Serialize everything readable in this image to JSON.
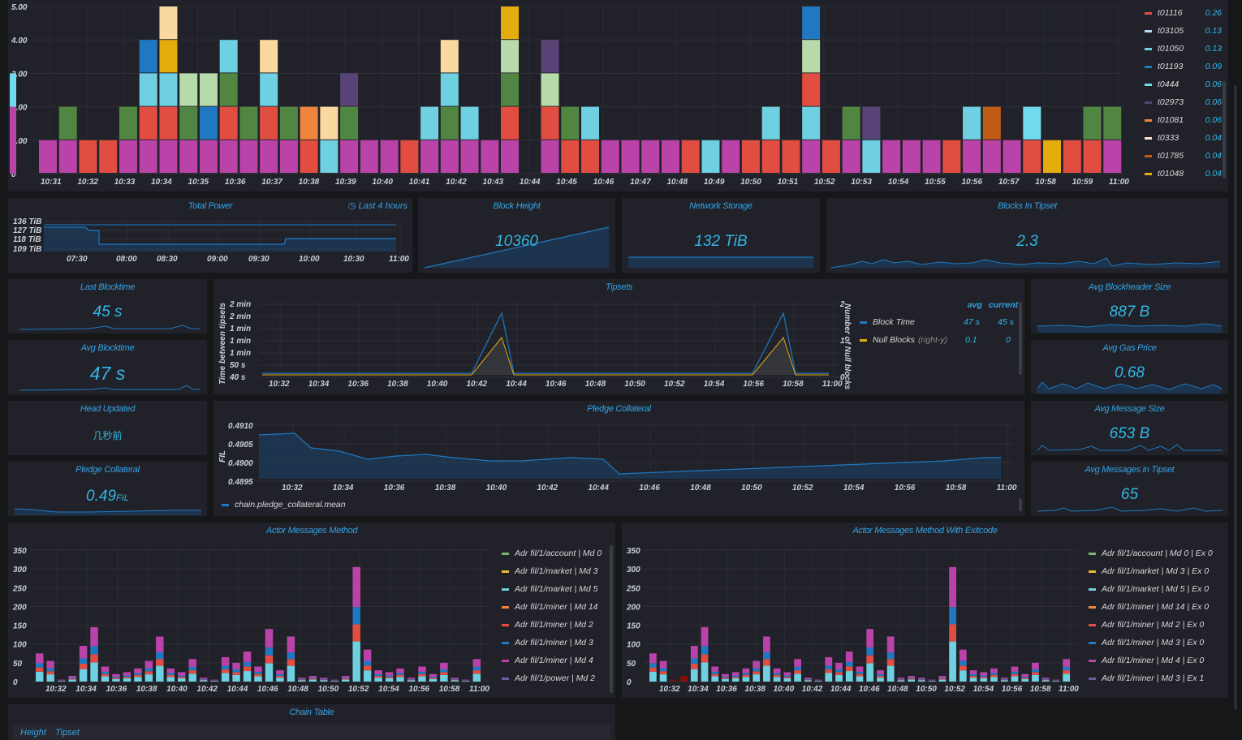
{
  "top_chart": {
    "y_ticks": [
      "5.00",
      "4.00",
      "3.00",
      "2.00",
      "1.00",
      "0"
    ],
    "x_ticks": [
      "10:31",
      "10:32",
      "10:33",
      "10:34",
      "10:35",
      "10:36",
      "10:37",
      "10:38",
      "10:39",
      "10:40",
      "10:41",
      "10:42",
      "10:43",
      "10:44",
      "10:45",
      "10:46",
      "10:47",
      "10:48",
      "10:49",
      "10:50",
      "10:51",
      "10:52",
      "10:53",
      "10:54",
      "10:55",
      "10:56",
      "10:57",
      "10:58",
      "10:59",
      "11:00"
    ],
    "legend": [
      {
        "name": "t01116",
        "value": "0.26",
        "color": "#e24d42"
      },
      {
        "name": "t03105",
        "value": "0.13",
        "color": "#badff4"
      },
      {
        "name": "t01050",
        "value": "0.13",
        "color": "#6ed0e0"
      },
      {
        "name": "t01193",
        "value": "0.09",
        "color": "#1f78c1"
      },
      {
        "name": "t0444",
        "value": "0.06",
        "color": "#70dbed"
      },
      {
        "name": "t02973",
        "value": "0.06",
        "color": "#584477"
      },
      {
        "name": "t01081",
        "value": "0.06",
        "color": "#ef843c"
      },
      {
        "name": "t0333",
        "value": "0.04",
        "color": "#f9e2d2"
      },
      {
        "name": "t01785",
        "value": "0.04",
        "color": "#c15c17"
      },
      {
        "name": "t01048",
        "value": "0.04",
        "color": "#e5ac0e"
      }
    ]
  },
  "total_power": {
    "title": "Total Power",
    "range": "Last 4 hours",
    "y_ticks": [
      "136 TiB",
      "127 TiB",
      "118 TiB",
      "109 TiB"
    ],
    "x_ticks": [
      "07:30",
      "08:00",
      "08:30",
      "09:00",
      "09:30",
      "10:00",
      "10:30",
      "11:00"
    ]
  },
  "block_height": {
    "title": "Block Height",
    "value": "10360"
  },
  "network_storage": {
    "title": "Network Storage",
    "value": "132 TiB"
  },
  "blocks_in_tipset": {
    "title": "Blocks In Tipset",
    "value": "2.3"
  },
  "last_blocktime": {
    "title": "Last Blocktime",
    "value": "45 s"
  },
  "avg_blocktime": {
    "title": "Avg Blocktime",
    "value": "47 s"
  },
  "head_updated": {
    "title": "Head Updated",
    "value": "几秒前"
  },
  "pledge_small": {
    "title": "Pledge Collateral",
    "value": "0.49",
    "unit": "FIL"
  },
  "tipsets": {
    "title": "Tipsets",
    "y_label": "Time between tipsets",
    "y2_label": "Number of Null blocks",
    "y_ticks": [
      "2 min",
      "2 min",
      "1 min",
      "1 min",
      "1 min",
      "50 s",
      "40 s"
    ],
    "y2_ticks": [
      "2",
      "1",
      "0"
    ],
    "x_ticks": [
      "10:32",
      "10:34",
      "10:36",
      "10:38",
      "10:40",
      "10:42",
      "10:44",
      "10:46",
      "10:48",
      "10:50",
      "10:52",
      "10:54",
      "10:56",
      "10:58",
      "11:00"
    ],
    "legend_head": {
      "avg": "avg",
      "current": "current"
    },
    "legend": [
      {
        "name": "Block Time",
        "suffix": "",
        "avg": "47 s",
        "current": "45 s",
        "color": "#1f78c1"
      },
      {
        "name": "Null Blocks",
        "suffix": "(right-y)",
        "avg": "0.1",
        "current": "0",
        "color": "#e5ac0e"
      }
    ]
  },
  "pledge": {
    "title": "Pledge Collateral",
    "y_label": "FIL",
    "y_ticks": [
      "0.4910",
      "0.4905",
      "0.4900",
      "0.4895"
    ],
    "x_ticks": [
      "10:32",
      "10:34",
      "10:36",
      "10:38",
      "10:40",
      "10:42",
      "10:44",
      "10:46",
      "10:48",
      "10:50",
      "10:52",
      "10:54",
      "10:56",
      "10:58",
      "11:00"
    ],
    "legend": "chain.pledge_collateral.mean"
  },
  "avg_blockheader_size": {
    "title": "Avg Blockheader Size",
    "value": "887 B"
  },
  "avg_gas_price": {
    "title": "Avg Gas Price",
    "value": "0.68"
  },
  "avg_message_size": {
    "title": "Avg Message Size",
    "value": "653 B"
  },
  "avg_messages_in_tipset": {
    "title": "Avg Messages in Tipset",
    "value": "65"
  },
  "actor_methods": {
    "title": "Actor Messages Method",
    "y_ticks": [
      "350",
      "300",
      "250",
      "200",
      "150",
      "100",
      "50",
      "0"
    ],
    "x_ticks": [
      "10:32",
      "10:34",
      "10:36",
      "10:38",
      "10:40",
      "10:42",
      "10:44",
      "10:46",
      "10:48",
      "10:50",
      "10:52",
      "10:54",
      "10:56",
      "10:58",
      "11:00"
    ],
    "legend": [
      {
        "name": "Adr fil/1/account | Md 0",
        "color": "#7eb26d"
      },
      {
        "name": "Adr fil/1/market | Md 3",
        "color": "#eab839"
      },
      {
        "name": "Adr fil/1/market | Md 5",
        "color": "#6ed0e0"
      },
      {
        "name": "Adr fil/1/miner | Md 14",
        "color": "#ef843c"
      },
      {
        "name": "Adr fil/1/miner | Md 2",
        "color": "#e24d42"
      },
      {
        "name": "Adr fil/1/miner | Md 3",
        "color": "#1f78c1"
      },
      {
        "name": "Adr fil/1/miner | Md 4",
        "color": "#ba43a9"
      },
      {
        "name": "Adr fil/1/power | Md 2",
        "color": "#705da0"
      }
    ]
  },
  "actor_methods_exit": {
    "title": "Actor Messages Method With Exitcode",
    "y_ticks": [
      "350",
      "300",
      "250",
      "200",
      "150",
      "100",
      "50",
      "0"
    ],
    "x_ticks": [
      "10:32",
      "10:34",
      "10:36",
      "10:38",
      "10:40",
      "10:42",
      "10:44",
      "10:46",
      "10:48",
      "10:50",
      "10:52",
      "10:54",
      "10:56",
      "10:58",
      "11:00"
    ],
    "legend": [
      {
        "name": "Adr fil/1/account | Md 0 | Ex 0",
        "color": "#7eb26d"
      },
      {
        "name": "Adr fil/1/market | Md 3 | Ex 0",
        "color": "#eab839"
      },
      {
        "name": "Adr fil/1/market | Md 5 | Ex 0",
        "color": "#6ed0e0"
      },
      {
        "name": "Adr fil/1/miner | Md 14 | Ex 0",
        "color": "#ef843c"
      },
      {
        "name": "Adr fil/1/miner | Md 2 | Ex 0",
        "color": "#e24d42"
      },
      {
        "name": "Adr fil/1/miner | Md 3 | Ex 0",
        "color": "#1f78c1"
      },
      {
        "name": "Adr fil/1/miner | Md 4 | Ex 0",
        "color": "#ba43a9"
      },
      {
        "name": "Adr fil/1/miner | Md 3 | Ex 1",
        "color": "#705da0"
      }
    ]
  },
  "chain_table": {
    "title": "Chain Table",
    "columns": [
      "Height",
      "Tipset"
    ]
  }
}
